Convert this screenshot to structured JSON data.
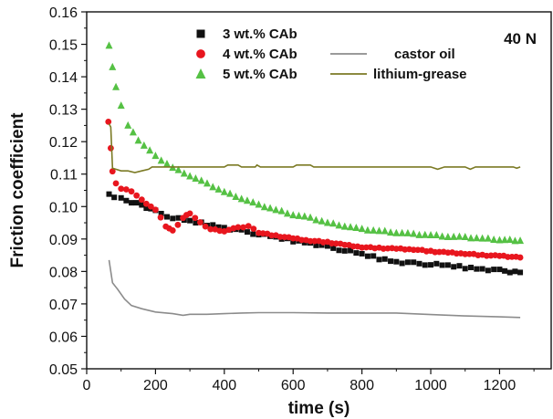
{
  "chart_data": {
    "type": "scatter",
    "title": "",
    "xlabel": "time (s)",
    "ylabel": "Friction coefficient",
    "annotation": "40 N",
    "xlim": [
      0,
      1350
    ],
    "ylim": [
      0.05,
      0.16
    ],
    "x_ticks": [
      "0",
      "200",
      "400",
      "600",
      "800",
      "1000",
      "1200"
    ],
    "y_ticks": [
      "0.05",
      "0.06",
      "0.07",
      "0.08",
      "0.09",
      "0.10",
      "0.11",
      "0.12",
      "0.13",
      "0.14",
      "0.15",
      "0.16"
    ],
    "grid": false,
    "legend_position": "top",
    "series": [
      {
        "name": "3 wt.% CAb",
        "style": "square-markers",
        "color": "#111111",
        "points": [
          [
            65,
            0.1035
          ],
          [
            80,
            0.103
          ],
          [
            100,
            0.1025
          ],
          [
            130,
            0.1015
          ],
          [
            160,
            0.1005
          ],
          [
            200,
            0.0985
          ],
          [
            250,
            0.0965
          ],
          [
            300,
            0.0955
          ],
          [
            350,
            0.0945
          ],
          [
            400,
            0.0935
          ],
          [
            450,
            0.0925
          ],
          [
            500,
            0.0915
          ],
          [
            550,
            0.0905
          ],
          [
            600,
            0.0895
          ],
          [
            650,
            0.0888
          ],
          [
            700,
            0.0875
          ],
          [
            750,
            0.0865
          ],
          [
            800,
            0.0853
          ],
          [
            850,
            0.084
          ],
          [
            900,
            0.083
          ],
          [
            950,
            0.0825
          ],
          [
            1000,
            0.0822
          ],
          [
            1050,
            0.0818
          ],
          [
            1100,
            0.0812
          ],
          [
            1150,
            0.0808
          ],
          [
            1200,
            0.0803
          ],
          [
            1260,
            0.0797
          ]
        ]
      },
      {
        "name": "4 wt.% CAb",
        "style": "circle-markers",
        "color": "#e8161e",
        "points": [
          [
            63,
            0.126
          ],
          [
            70,
            0.118
          ],
          [
            75,
            0.111
          ],
          [
            85,
            0.107
          ],
          [
            100,
            0.1055
          ],
          [
            130,
            0.1048
          ],
          [
            160,
            0.102
          ],
          [
            200,
            0.099
          ],
          [
            230,
            0.094
          ],
          [
            250,
            0.0925
          ],
          [
            280,
            0.0965
          ],
          [
            300,
            0.098
          ],
          [
            330,
            0.095
          ],
          [
            360,
            0.093
          ],
          [
            400,
            0.0925
          ],
          [
            440,
            0.0935
          ],
          [
            470,
            0.094
          ],
          [
            500,
            0.092
          ],
          [
            550,
            0.091
          ],
          [
            600,
            0.0902
          ],
          [
            650,
            0.0895
          ],
          [
            700,
            0.089
          ],
          [
            750,
            0.0882
          ],
          [
            800,
            0.0875
          ],
          [
            850,
            0.0872
          ],
          [
            900,
            0.087
          ],
          [
            950,
            0.0868
          ],
          [
            1000,
            0.0862
          ],
          [
            1050,
            0.0858
          ],
          [
            1100,
            0.0855
          ],
          [
            1150,
            0.085
          ],
          [
            1200,
            0.0848
          ],
          [
            1260,
            0.0843
          ]
        ]
      },
      {
        "name": "5 wt.% CAb",
        "style": "triangle-markers",
        "color": "#55c144",
        "points": [
          [
            65,
            0.1495
          ],
          [
            75,
            0.143
          ],
          [
            85,
            0.137
          ],
          [
            100,
            0.131
          ],
          [
            120,
            0.125
          ],
          [
            150,
            0.1205
          ],
          [
            200,
            0.1155
          ],
          [
            250,
            0.112
          ],
          [
            300,
            0.1095
          ],
          [
            350,
            0.107
          ],
          [
            400,
            0.1045
          ],
          [
            450,
            0.1025
          ],
          [
            500,
            0.1005
          ],
          [
            550,
            0.099
          ],
          [
            600,
            0.0975
          ],
          [
            650,
            0.0965
          ],
          [
            700,
            0.095
          ],
          [
            750,
            0.094
          ],
          [
            800,
            0.093
          ],
          [
            850,
            0.0925
          ],
          [
            900,
            0.092
          ],
          [
            950,
            0.0915
          ],
          [
            1000,
            0.0912
          ],
          [
            1050,
            0.0908
          ],
          [
            1100,
            0.0905
          ],
          [
            1150,
            0.0902
          ],
          [
            1200,
            0.0898
          ],
          [
            1260,
            0.0895
          ]
        ]
      },
      {
        "name": "castor oil",
        "style": "line",
        "color": "#8c8c8c",
        "points": [
          [
            65,
            0.0835
          ],
          [
            75,
            0.0765
          ],
          [
            90,
            0.0745
          ],
          [
            110,
            0.0715
          ],
          [
            130,
            0.0695
          ],
          [
            160,
            0.0685
          ],
          [
            200,
            0.0675
          ],
          [
            250,
            0.067
          ],
          [
            280,
            0.0665
          ],
          [
            300,
            0.0668
          ],
          [
            350,
            0.0668
          ],
          [
            400,
            0.067
          ],
          [
            450,
            0.0672
          ],
          [
            500,
            0.0673
          ],
          [
            600,
            0.0673
          ],
          [
            700,
            0.0672
          ],
          [
            800,
            0.0672
          ],
          [
            900,
            0.0672
          ],
          [
            1000,
            0.0667
          ],
          [
            1100,
            0.0663
          ],
          [
            1200,
            0.066
          ],
          [
            1260,
            0.0658
          ]
        ]
      },
      {
        "name": "lithium-grease",
        "style": "line",
        "color": "#7b7a24",
        "points": [
          [
            65,
            0.1255
          ],
          [
            70,
            0.1245
          ],
          [
            75,
            0.1118
          ],
          [
            85,
            0.1115
          ],
          [
            100,
            0.111
          ],
          [
            120,
            0.111
          ],
          [
            140,
            0.1105
          ],
          [
            160,
            0.111
          ],
          [
            180,
            0.1115
          ],
          [
            190,
            0.1122
          ],
          [
            400,
            0.1122
          ],
          [
            410,
            0.1128
          ],
          [
            440,
            0.1128
          ],
          [
            450,
            0.1122
          ],
          [
            490,
            0.1122
          ],
          [
            495,
            0.1128
          ],
          [
            505,
            0.1122
          ],
          [
            600,
            0.1122
          ],
          [
            610,
            0.1128
          ],
          [
            650,
            0.1128
          ],
          [
            660,
            0.1122
          ],
          [
            800,
            0.1122
          ],
          [
            1000,
            0.1122
          ],
          [
            1020,
            0.1115
          ],
          [
            1040,
            0.1122
          ],
          [
            1100,
            0.1122
          ],
          [
            1115,
            0.1115
          ],
          [
            1130,
            0.1122
          ],
          [
            1240,
            0.1122
          ],
          [
            1250,
            0.1118
          ],
          [
            1260,
            0.1122
          ]
        ]
      }
    ]
  }
}
